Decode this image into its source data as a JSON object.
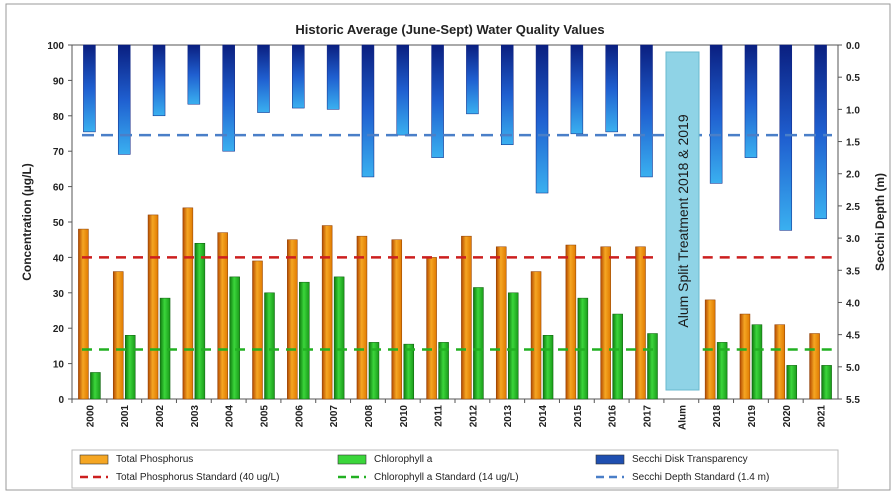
{
  "chart_data": {
    "type": "bar",
    "title": "Historic Average (June-Sept) Water Quality Values",
    "ylabel": "Concentration (µg/L)",
    "y2label": "Secchi Depth (m)",
    "ylim": [
      0,
      100
    ],
    "y2lim": [
      0,
      5.5
    ],
    "y2_inverted": true,
    "yticks": [
      0,
      10,
      20,
      30,
      40,
      50,
      60,
      70,
      80,
      90,
      100
    ],
    "y2ticks": [
      "0.0",
      "0.5",
      "1.0",
      "1.5",
      "2.0",
      "2.5",
      "3.0",
      "3.5",
      "4.0",
      "4.5",
      "5.0",
      "5.5"
    ],
    "categories": [
      "2000",
      "2001",
      "2002",
      "2003",
      "2004",
      "2005",
      "2006",
      "2007",
      "2008",
      "2010",
      "2011",
      "2012",
      "2013",
      "2014",
      "2015",
      "2016",
      "2017",
      "Alum",
      "2018",
      "2019",
      "2020",
      "2021"
    ],
    "series": [
      {
        "name": "Total Phosphorus",
        "axis": "left",
        "color": "#f5a623",
        "values": [
          48,
          36,
          52,
          54,
          47,
          39,
          45,
          49,
          46,
          45,
          40,
          46,
          43,
          36,
          43.5,
          43,
          43,
          null,
          28,
          24,
          21,
          18.5
        ]
      },
      {
        "name": "Chlorophyll a",
        "axis": "left",
        "color": "#3bd63b",
        "values": [
          7.5,
          18,
          28.5,
          44,
          34.5,
          30,
          33,
          34.5,
          16,
          15.5,
          16,
          31.5,
          30,
          18,
          28.5,
          24,
          18.5,
          null,
          16,
          21,
          9.5,
          9.5
        ]
      },
      {
        "name": "Secchi Disk Transparency",
        "axis": "right",
        "color": "#2b6fd6",
        "values": [
          1.35,
          1.7,
          1.1,
          0.92,
          1.65,
          1.05,
          0.98,
          1.0,
          2.05,
          1.4,
          1.75,
          1.07,
          1.55,
          2.3,
          1.38,
          1.35,
          2.05,
          null,
          2.15,
          1.75,
          2.88,
          2.7
        ]
      }
    ],
    "standards": [
      {
        "name": "Total Phosphorus Standard (40 ug/L)",
        "axis": "left",
        "value": 40,
        "color": "#cc1f1f"
      },
      {
        "name": "Chlorophyll a Standard (14 ug/L)",
        "axis": "left",
        "value": 14,
        "color": "#22b022"
      },
      {
        "name": "Secchi Depth Standard (1.4 m)",
        "axis": "right",
        "value": 1.4,
        "color": "#4a7fc8"
      }
    ],
    "annotation": "Alum Split Treatment 2018 & 2019",
    "legend": [
      {
        "label": "Total Phosphorus",
        "kind": "bar",
        "color": "#f5a623"
      },
      {
        "label": "Chlorophyll a",
        "kind": "bar",
        "color": "#3bd63b"
      },
      {
        "label": "Secchi Disk Transparency",
        "kind": "bar",
        "color": "#1f4fb0"
      },
      {
        "label": "Total Phosphorus Standard (40 ug/L)",
        "kind": "dash",
        "color": "#cc1f1f"
      },
      {
        "label": "Chlorophyll a Standard (14 ug/L)",
        "kind": "dash",
        "color": "#22b022"
      },
      {
        "label": "Secchi Depth Standard (1.4 m)",
        "kind": "dash",
        "color": "#4a7fc8"
      }
    ],
    "legend_position": "bottom",
    "grid": false
  }
}
